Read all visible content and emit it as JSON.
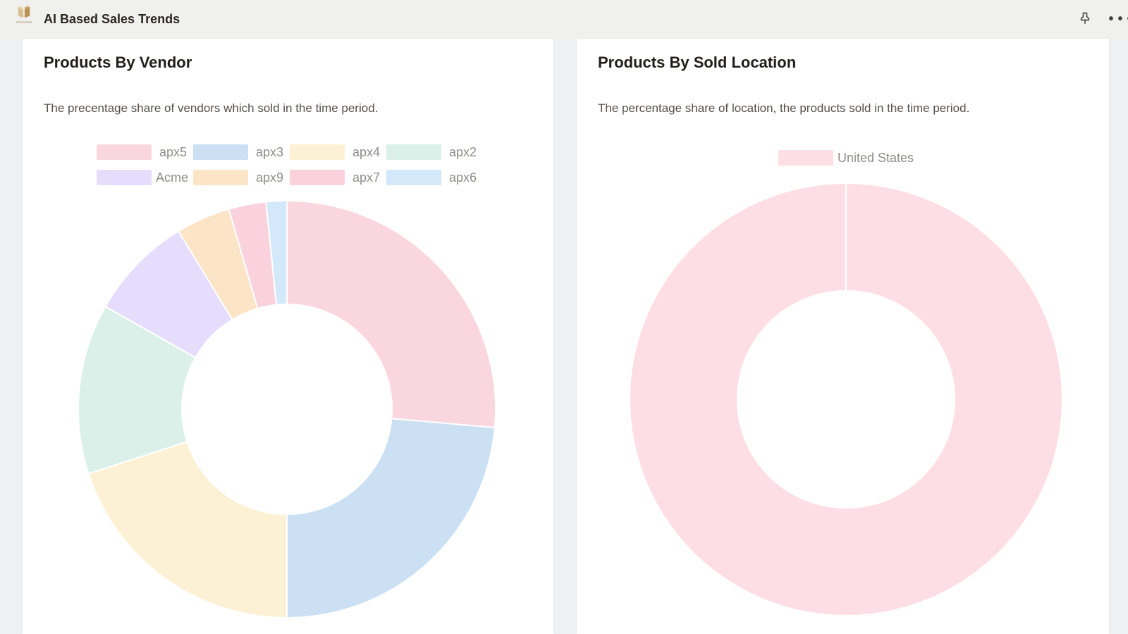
{
  "topbar": {
    "title": "AI Based Sales Trends",
    "icons": [
      "page-logo-icon",
      "pushpin-icon",
      "ellipsis-icon"
    ],
    "ellipsis_glyph": "•••"
  },
  "cards": [
    {
      "title": "Products By Vendor",
      "description": "The precentage share of vendors which sold in the time period."
    },
    {
      "title": "Products By Sold Location",
      "description": "The percentage share of location, the products sold in the time period."
    }
  ],
  "chart_data": [
    {
      "type": "pie",
      "subtype": "doughnut",
      "title": "Products By Vendor",
      "legend_position": "top",
      "cutout": "50%",
      "start_angle_deg": 0,
      "direction": "clockwise",
      "unit": "percent",
      "labels": [
        "apx5",
        "apx3",
        "apx4",
        "apx2",
        "Acme",
        "apx9",
        "apx7",
        "apx6"
      ],
      "values": [
        26.4,
        23.6,
        20.0,
        13.2,
        8.1,
        4.2,
        2.9,
        1.6
      ],
      "colors": [
        "#FAD7E0",
        "#CCE0F4",
        "#FCF1D5",
        "#DAF0E9",
        "#E6DCFC",
        "#FCE4C7",
        "#FAD2DD",
        "#D3E8F8"
      ]
    },
    {
      "type": "pie",
      "subtype": "doughnut",
      "title": "Products By Sold Location",
      "legend_position": "top",
      "cutout": "50%",
      "start_angle_deg": 0,
      "direction": "clockwise",
      "unit": "percent",
      "labels": [
        "United States"
      ],
      "values": [
        100
      ],
      "colors": [
        "#FDDEE6"
      ]
    }
  ],
  "style": {
    "card_bg": "#FFFFFF",
    "page_bg": "#EFF0F2",
    "topbar_bg": "#F0F0EE",
    "separator_color": "#FFFFFF",
    "legend_text_color": "#8E8D89"
  }
}
